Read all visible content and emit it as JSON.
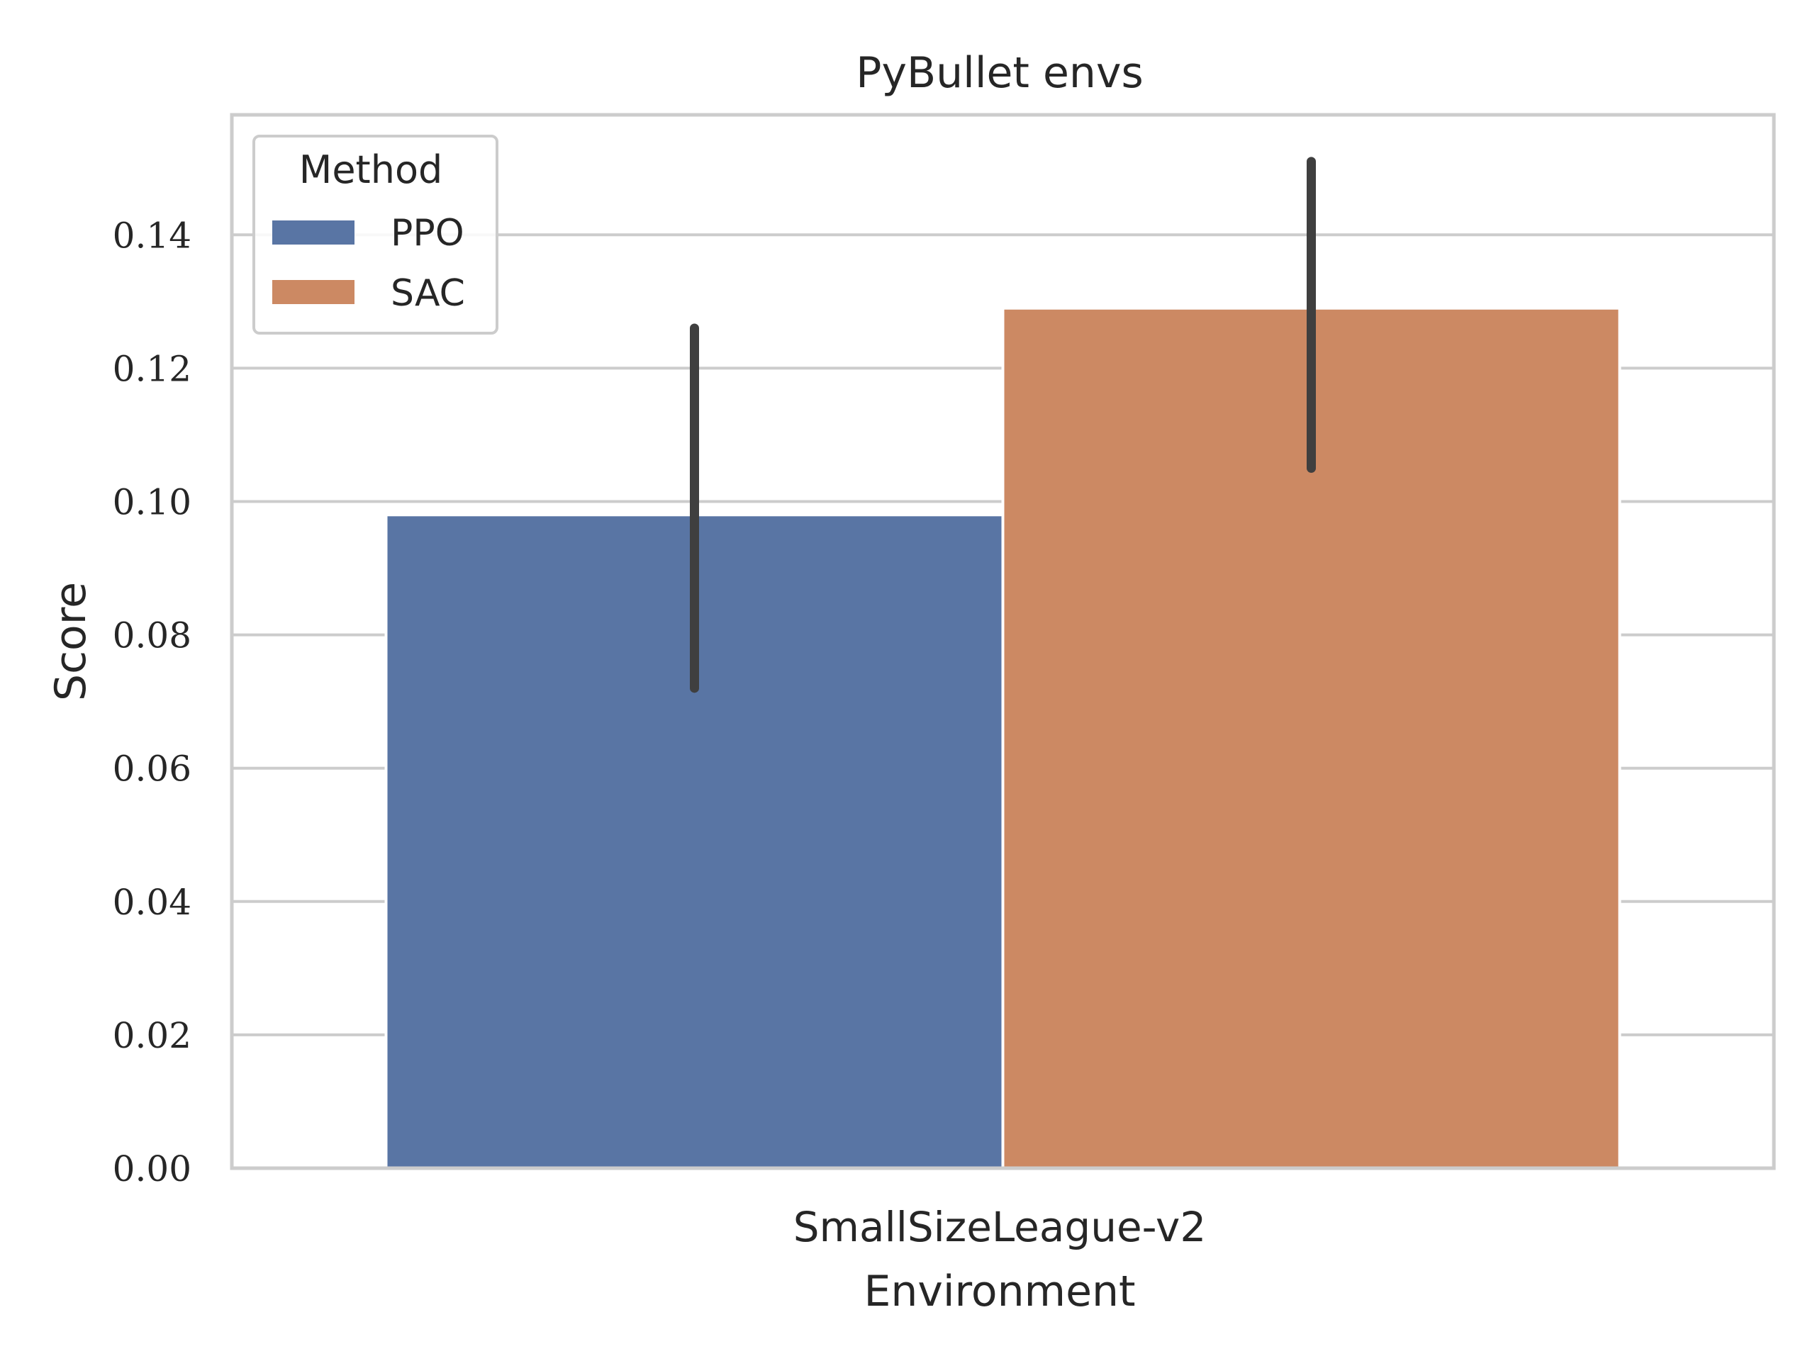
{
  "chart_data": {
    "type": "bar",
    "title": "PyBullet envs",
    "xlabel": "Environment",
    "ylabel": "Score",
    "categories": [
      "SmallSizeLeague-v2"
    ],
    "series": [
      {
        "name": "PPO",
        "values": [
          0.098
        ],
        "error_low": [
          0.072
        ],
        "error_high": [
          0.126
        ],
        "color": "#5975a4"
      },
      {
        "name": "SAC",
        "values": [
          0.129
        ],
        "error_low": [
          0.105
        ],
        "error_high": [
          0.151
        ],
        "color": "#cc8963"
      }
    ],
    "ylim": [
      0,
      0.158
    ],
    "yticks": [
      "0.00",
      "0.02",
      "0.04",
      "0.06",
      "0.08",
      "0.10",
      "0.12",
      "0.14"
    ],
    "grid": true,
    "legend": {
      "title": "Method",
      "placement": "top-left"
    }
  }
}
